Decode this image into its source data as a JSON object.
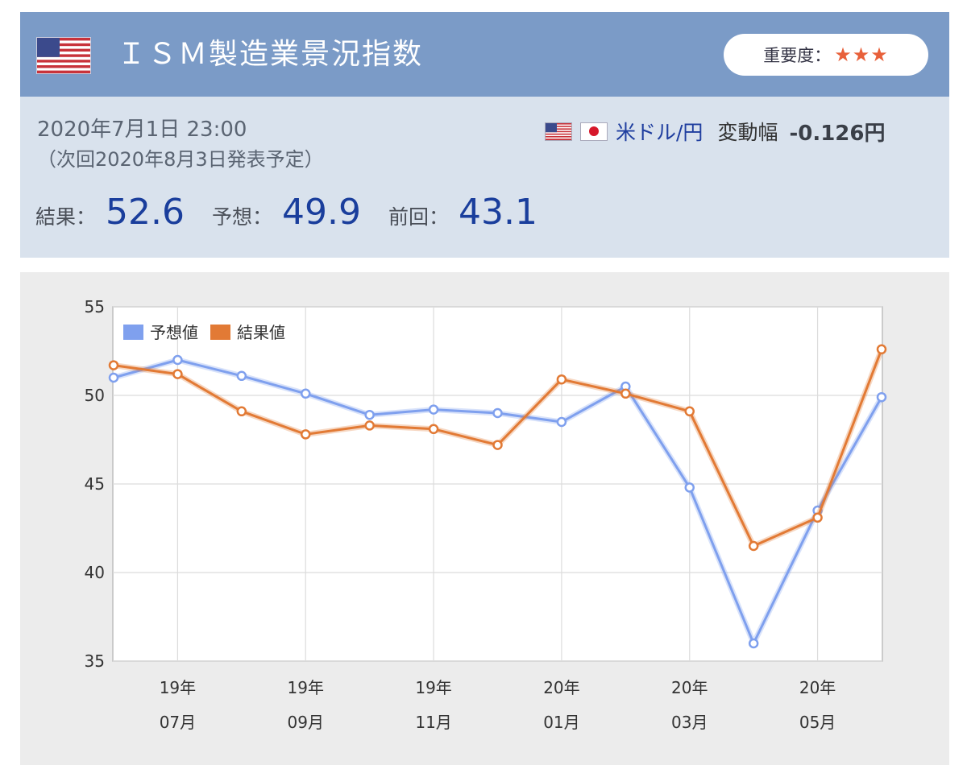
{
  "header": {
    "title": "ＩＳＭ製造業景況指数",
    "flag_icon": "us-flag-icon",
    "importance_label": "重要度：",
    "importance_stars": "★★★"
  },
  "release": {
    "datetime": "2020年7月1日 23:00",
    "next": "（次回2020年8月3日発表予定）"
  },
  "currency": {
    "pair": "米ドル/円",
    "change_label": "変動幅",
    "change_value": "-0.126円"
  },
  "values": {
    "result_label": "結果：",
    "result": "52.6",
    "forecast_label": "予想：",
    "forecast": "49.9",
    "previous_label": "前回：",
    "previous": "43.1"
  },
  "colors": {
    "header_bg": "#7b9bc7",
    "panel_bg": "#d9e2ed",
    "forecast_series": "#7fa0ee",
    "result_series": "#e27a35",
    "star": "#e8603a"
  },
  "chart_data": {
    "type": "line",
    "ylim": [
      35,
      55
    ],
    "yticks": [
      "55",
      "50",
      "45",
      "40",
      "35"
    ],
    "x": [
      "2019-06",
      "2019-07",
      "2019-08",
      "2019-09",
      "2019-10",
      "2019-11",
      "2019-12",
      "2020-01",
      "2020-02",
      "2020-03",
      "2020-04",
      "2020-05",
      "2020-06"
    ],
    "xtick_labels": [
      {
        "year": "19年",
        "month": "07月"
      },
      {
        "year": "19年",
        "month": "09月"
      },
      {
        "year": "19年",
        "month": "11月"
      },
      {
        "year": "20年",
        "month": "01月"
      },
      {
        "year": "20年",
        "month": "03月"
      },
      {
        "year": "20年",
        "month": "05月"
      }
    ],
    "series": [
      {
        "name": "予想値",
        "color": "#7fa0ee",
        "values": [
          51.0,
          52.0,
          51.1,
          50.1,
          48.9,
          49.2,
          49.0,
          48.5,
          50.5,
          44.8,
          36.0,
          43.5,
          49.9
        ]
      },
      {
        "name": "結果値",
        "color": "#e27a35",
        "values": [
          51.7,
          51.2,
          49.1,
          47.8,
          48.3,
          48.1,
          47.2,
          50.9,
          50.1,
          49.1,
          41.5,
          43.1,
          52.6
        ]
      }
    ],
    "grid": true,
    "legend": "top-left"
  }
}
